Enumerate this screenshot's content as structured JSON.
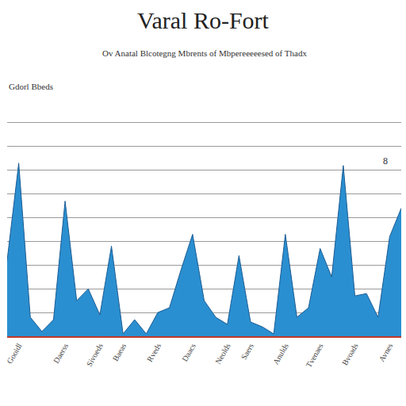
{
  "chart_data": {
    "type": "area",
    "title": "Varal Ro-Fort",
    "subtitle": "Ov Anatal Blcotegng Mbrents of Mbpereeeeesed of Thadx",
    "annotations": [
      "Gdorl Bbeds",
      "8"
    ],
    "categories": [
      null,
      "Gooidl",
      null,
      null,
      null,
      "Daerss",
      null,
      null,
      "Sivoeds",
      null,
      "Baeas",
      null,
      null,
      "Rveds",
      null,
      null,
      "Daacs",
      null,
      null,
      "Neolds",
      null,
      "Saers",
      null,
      null,
      "Anulds",
      null,
      null,
      "Tvenaes",
      null,
      null,
      "Bvoads",
      null,
      null,
      "Avnes",
      null
    ],
    "values": [
      3.2,
      7.3,
      0.8,
      0.2,
      0.7,
      5.7,
      1.5,
      2.0,
      0.9,
      3.8,
      0.1,
      0.7,
      0.1,
      1.0,
      1.2,
      2.8,
      4.3,
      1.5,
      0.8,
      0.5,
      3.4,
      0.6,
      0.4,
      0.1,
      4.3,
      0.8,
      1.2,
      3.7,
      2.5,
      7.2,
      1.7,
      1.8,
      0.8,
      4.2,
      5.4
    ],
    "color": "#2a8fd0",
    "ylim": [
      0,
      10
    ],
    "yticks": [
      0,
      1,
      2,
      3,
      4,
      5,
      6,
      7,
      8,
      9,
      10
    ],
    "grid": true,
    "tick_labels": "x"
  }
}
